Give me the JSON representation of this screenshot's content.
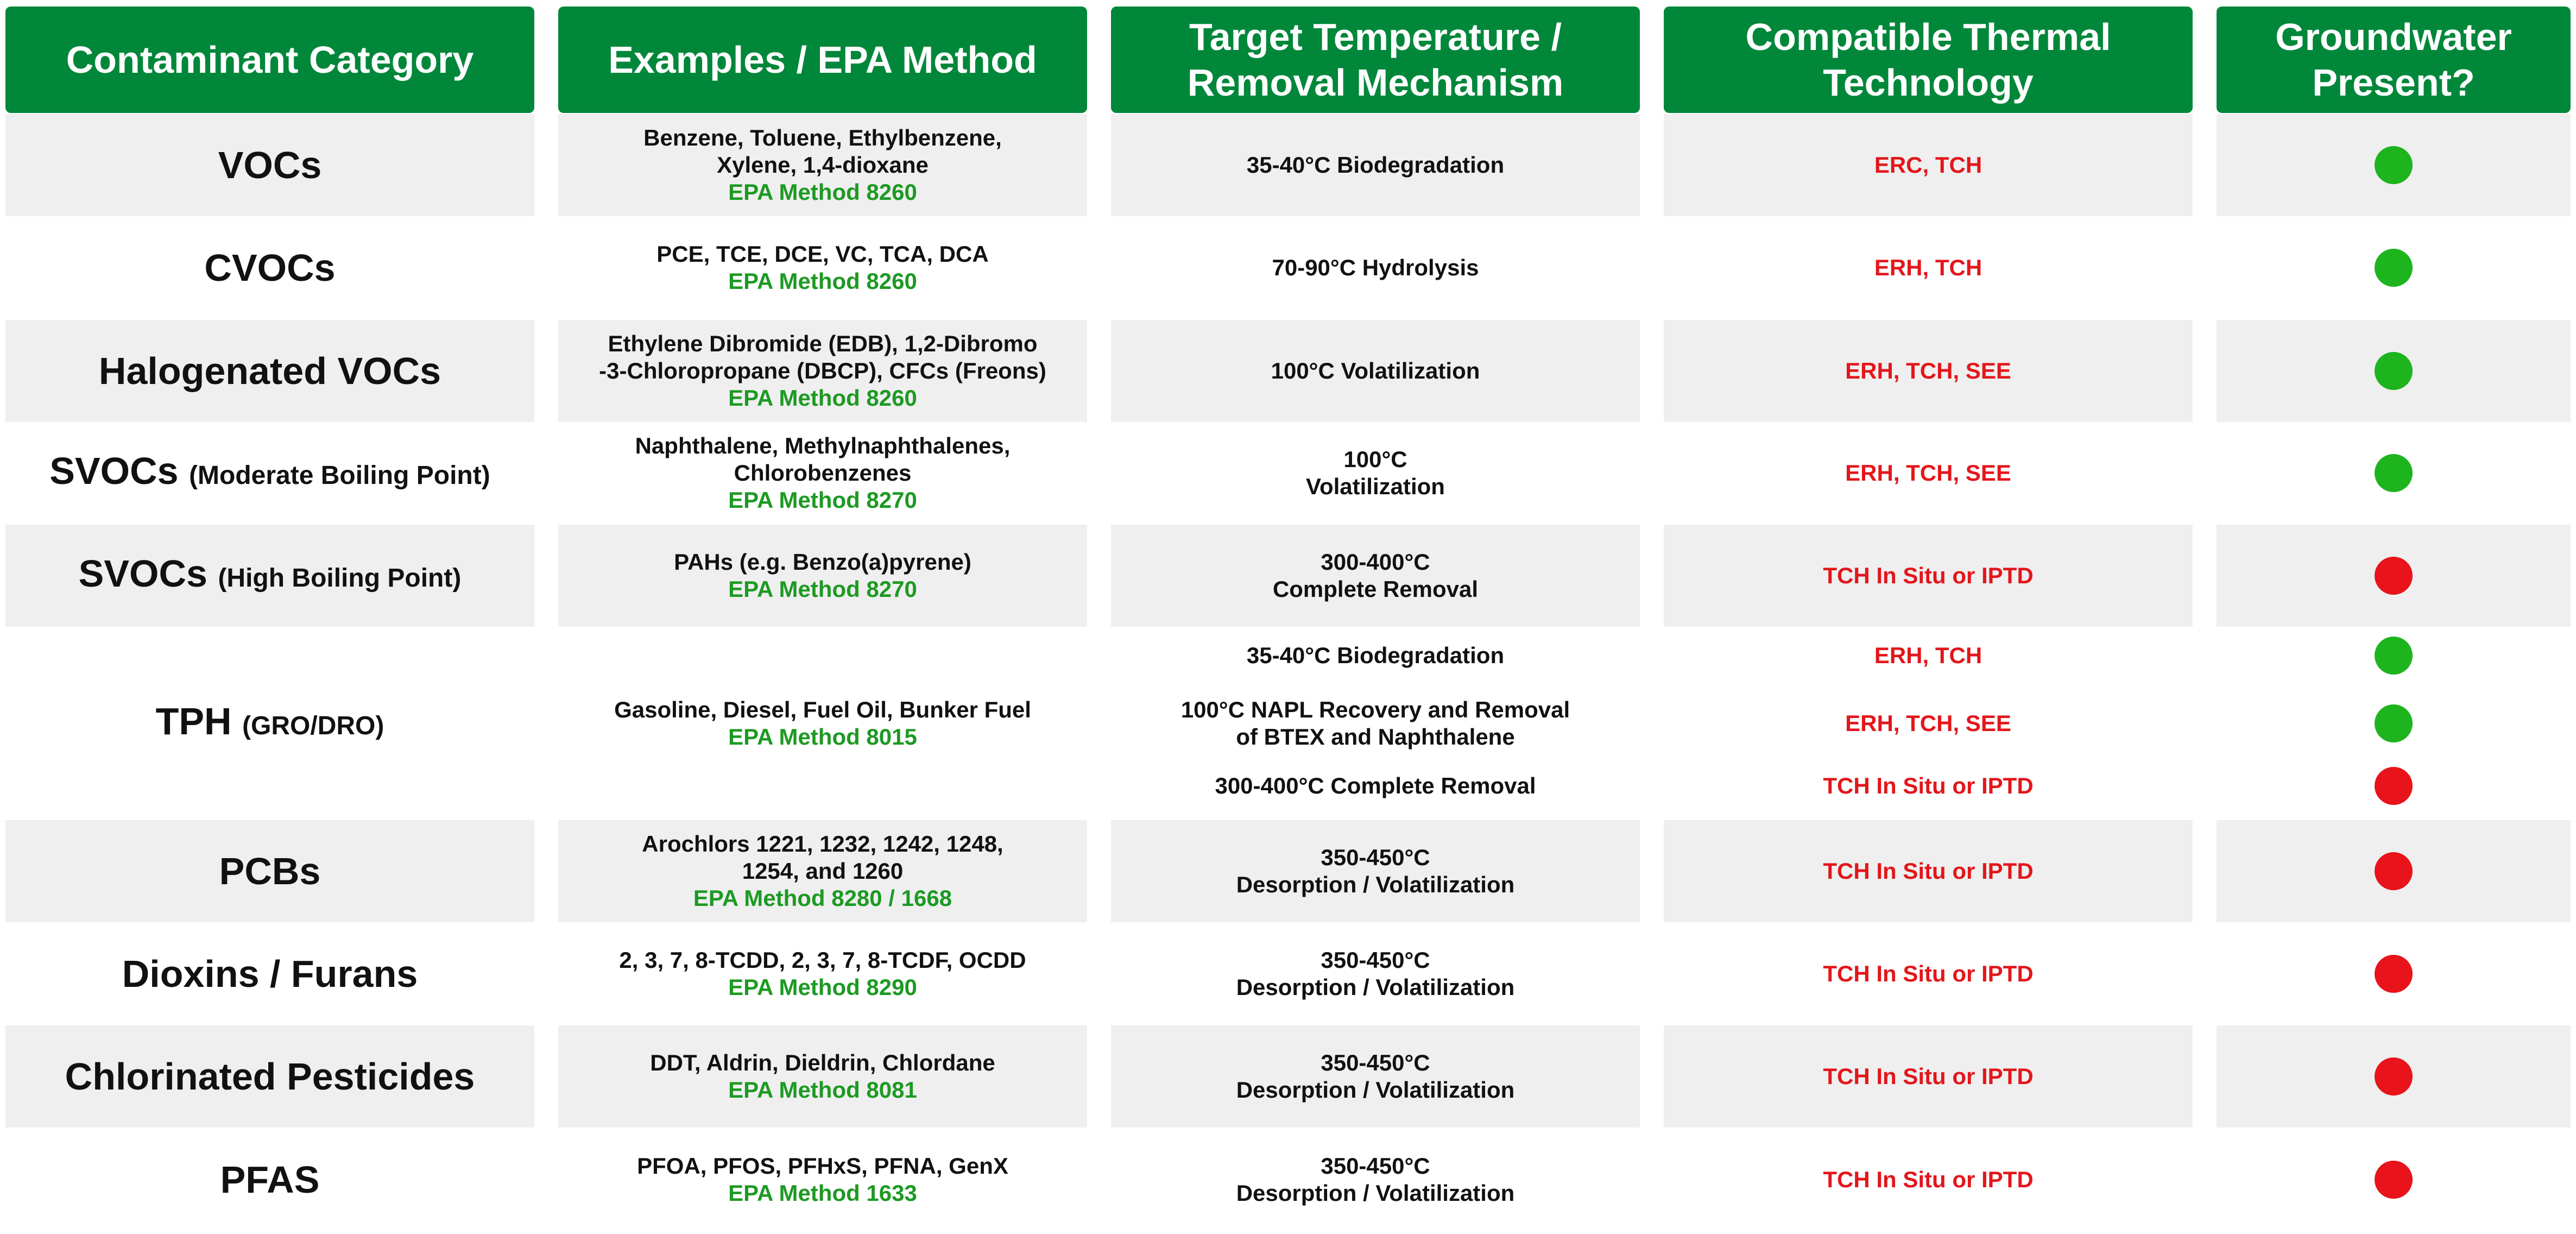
{
  "colors": {
    "header_bg": "#00873a",
    "band_bg": "#efefef",
    "method_text": "#1c9a22",
    "tech_text": "#e3161b",
    "dot_green": "#1db41d",
    "dot_red": "#e8131b"
  },
  "headers": [
    [
      "Contaminant Category"
    ],
    [
      "Examples / EPA Method"
    ],
    [
      "Target Temperature /",
      "Removal Mechanism"
    ],
    [
      "Compatible Thermal",
      "Technology"
    ],
    [
      "Groundwater",
      "Present?"
    ]
  ],
  "rows": [
    {
      "category": "VOCs",
      "qualifier": "",
      "examples": [
        "Benzene, Toluene, Ethylbenzene,",
        "Xylene, 1,4-dioxane"
      ],
      "method": "EPA Method 8260",
      "subs": [
        {
          "mechanism": [
            "35-40°C Biodegradation"
          ],
          "technology": "ERC, TCH",
          "groundwater": "green"
        }
      ]
    },
    {
      "category": "CVOCs",
      "qualifier": "",
      "examples": [
        "PCE, TCE, DCE, VC, TCA, DCA"
      ],
      "method": "EPA Method 8260",
      "subs": [
        {
          "mechanism": [
            "70-90°C Hydrolysis"
          ],
          "technology": "ERH, TCH",
          "groundwater": "green"
        }
      ]
    },
    {
      "category": "Halogenated VOCs",
      "qualifier": "",
      "examples": [
        "Ethylene Dibromide (EDB), 1,2-Dibromo",
        "-3-Chloropropane (DBCP), CFCs (Freons)"
      ],
      "method": "EPA Method 8260",
      "subs": [
        {
          "mechanism": [
            "100°C Volatilization"
          ],
          "technology": "ERH, TCH, SEE",
          "groundwater": "green"
        }
      ]
    },
    {
      "category": "SVOCs",
      "qualifier": "(Moderate Boiling Point)",
      "examples": [
        "Naphthalene, Methylnaphthalenes,",
        "Chlorobenzenes"
      ],
      "method": "EPA Method 8270",
      "subs": [
        {
          "mechanism": [
            "100°C",
            "Volatilization"
          ],
          "technology": "ERH, TCH, SEE",
          "groundwater": "green"
        }
      ]
    },
    {
      "category": "SVOCs",
      "qualifier": "(High Boiling Point)",
      "examples": [
        "PAHs (e.g. Benzo(a)pyrene)"
      ],
      "method": "EPA Method 8270",
      "subs": [
        {
          "mechanism": [
            "300-400°C",
            "Complete Removal"
          ],
          "technology": "TCH In Situ or IPTD",
          "groundwater": "red"
        }
      ]
    },
    {
      "category": "TPH",
      "qualifier": "(GRO/DRO)",
      "examples": [
        "Gasoline, Diesel, Fuel Oil, Bunker Fuel"
      ],
      "method": "EPA Method 8015",
      "subs": [
        {
          "mechanism": [
            "35-40°C Biodegradation"
          ],
          "technology": "ERH, TCH",
          "groundwater": "green"
        },
        {
          "mechanism": [
            "100°C NAPL Recovery and Removal",
            "of BTEX and Naphthalene"
          ],
          "technology": "ERH, TCH, SEE",
          "groundwater": "green"
        },
        {
          "mechanism": [
            "300-400°C Complete Removal"
          ],
          "technology": "TCH In Situ or IPTD",
          "groundwater": "red"
        }
      ]
    },
    {
      "category": "PCBs",
      "qualifier": "",
      "examples": [
        "Arochlors 1221, 1232, 1242, 1248,",
        "1254, and 1260"
      ],
      "method": "EPA Method 8280 / 1668",
      "subs": [
        {
          "mechanism": [
            "350-450°C",
            "Desorption / Volatilization"
          ],
          "technology": "TCH In Situ or IPTD",
          "groundwater": "red"
        }
      ]
    },
    {
      "category": "Dioxins / Furans",
      "qualifier": "",
      "examples": [
        "2, 3, 7, 8-TCDD, 2, 3, 7, 8-TCDF, OCDD"
      ],
      "method": "EPA Method 8290",
      "subs": [
        {
          "mechanism": [
            "350-450°C",
            "Desorption / Volatilization"
          ],
          "technology": "TCH In Situ or IPTD",
          "groundwater": "red"
        }
      ]
    },
    {
      "category": "Chlorinated Pesticides",
      "qualifier": "",
      "examples": [
        "DDT, Aldrin, Dieldrin, Chlordane"
      ],
      "method": "EPA Method 8081",
      "subs": [
        {
          "mechanism": [
            "350-450°C",
            "Desorption / Volatilization"
          ],
          "technology": "TCH In Situ or IPTD",
          "groundwater": "red"
        }
      ]
    },
    {
      "category": "PFAS",
      "qualifier": "",
      "examples": [
        "PFOA, PFOS, PFHxS, PFNA, GenX"
      ],
      "method": "EPA Method 1633",
      "subs": [
        {
          "mechanism": [
            "350-450°C",
            "Desorption / Volatilization"
          ],
          "technology": "TCH In Situ or IPTD",
          "groundwater": "red"
        }
      ]
    }
  ]
}
